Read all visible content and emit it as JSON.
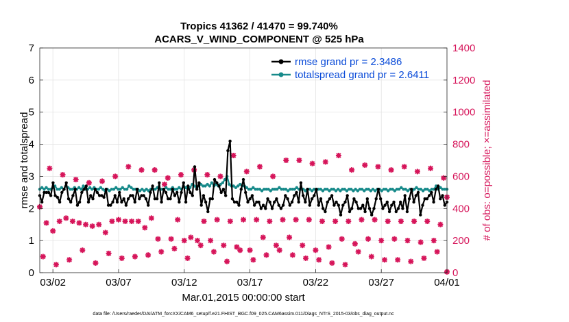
{
  "chart_data": {
    "type": "line",
    "title": "Tropics 41362 / 41470 = 99.740%",
    "subtitle": "ACARS_V_WIND_COMPONENT @ 525 hPa",
    "xlabel": "Mar.01,2015 00:00:00 start",
    "ylabel": "rmse and totalspread",
    "y2label": "# of obs: o=possible; ×=assimilated",
    "ylim": [
      0,
      7
    ],
    "y2lim": [
      0,
      1400
    ],
    "xlim": [
      0,
      31
    ],
    "yticks": [
      0,
      1,
      2,
      3,
      4,
      5,
      6,
      7
    ],
    "y2ticks": [
      0,
      200,
      400,
      600,
      800,
      1000,
      1200,
      1400
    ],
    "xticks": [
      {
        "pos": 1,
        "label": "03/02"
      },
      {
        "pos": 6,
        "label": "03/07"
      },
      {
        "pos": 11,
        "label": "03/12"
      },
      {
        "pos": 16,
        "label": "03/17"
      },
      {
        "pos": 21,
        "label": "03/22"
      },
      {
        "pos": 26,
        "label": "03/27"
      },
      {
        "pos": 31,
        "label": "04/01"
      }
    ],
    "grid": true,
    "legend_position": "top-right",
    "colors": {
      "rmse": "#000000",
      "spread": "#178a8a",
      "obs": "#d6155a",
      "legend_text": "#0a4bd8",
      "right_axis": "#d6155a"
    },
    "series": [
      {
        "name": "rmse grand pr = 2.3486",
        "values": [
          2.4,
          2.2,
          2.5,
          2.5,
          2.5,
          2.4,
          2.8,
          2.4,
          2.35,
          2.2,
          2.5,
          2.6,
          2.8,
          2.3,
          2.2,
          2.4,
          2.6,
          2.1,
          2.2,
          2.5,
          2.6,
          2.7,
          2.2,
          2.4,
          2.3,
          2.6,
          2.5,
          2.4,
          2.4,
          2.35,
          2.6,
          2.1,
          2.1,
          2.2,
          2.4,
          2.2,
          2.5,
          2.2,
          2.3,
          2.1,
          2.3,
          2.4,
          2.4,
          2.2,
          2.6,
          2.3,
          2.4,
          2.4,
          2.3,
          2.1,
          2.5,
          2.7,
          2.3,
          2.3,
          2.8,
          2.2,
          2.6,
          2.5,
          2.3,
          2.3,
          2.6,
          2.4,
          2.5,
          2.2,
          2.5,
          2.8,
          2.2,
          2.7,
          2.5,
          2.4,
          3.3,
          2.6,
          2.8,
          2.1,
          2.4,
          2.2,
          1.9,
          2.3,
          2.3,
          2.9,
          2.8,
          2.7,
          2.5,
          2.6,
          2.4,
          3.8,
          4.1,
          2.3,
          2.2,
          2.2,
          2.1,
          2.6,
          2.9,
          2.5,
          2.2,
          2.3,
          2.4,
          2.1,
          2.2,
          2.2,
          2.0,
          2.1,
          2.0,
          2.3,
          2.2,
          2.0,
          2.2,
          2.3,
          2.1,
          2.0,
          2.1,
          2.4,
          2.3,
          2.1,
          2.2,
          2.4,
          2.5,
          2.2,
          2.8,
          2.4,
          2.2,
          2.6,
          2.1,
          2.3,
          2.4,
          2.6,
          2.1,
          2.3,
          2.0,
          1.9,
          2.2,
          2.3,
          2.4,
          2.1,
          2.2,
          2.1,
          1.8,
          2.1,
          2.2,
          2.4,
          1.9,
          2.0,
          2.3,
          2.2,
          2.0,
          2.0,
          2.1,
          1.9,
          2.3,
          2.0,
          1.8,
          2.0,
          2.3,
          2.6,
          2.3,
          2.0,
          2.1,
          2.2,
          1.9,
          2.1,
          2.2,
          1.9,
          2.0,
          2.2,
          2.0,
          2.4,
          1.9,
          2.3,
          2.6,
          2.2,
          2.4,
          2.5,
          1.8,
          2.1,
          2.3,
          2.3,
          2.4,
          2.5,
          2.2,
          2.6,
          2.7,
          2.3,
          2.4,
          2.1,
          2.2
        ]
      },
      {
        "name": "totalspread grand pr = 2.6411",
        "values": [
          2.6,
          2.65,
          2.6,
          2.65,
          2.6,
          2.6,
          2.65,
          2.7,
          2.6,
          2.6,
          2.65,
          2.6,
          2.7,
          2.65,
          2.6,
          2.6,
          2.65,
          2.6,
          2.65,
          2.6,
          2.7,
          2.6,
          2.6,
          2.65,
          2.6,
          2.65,
          2.6,
          2.6,
          2.65,
          2.6,
          2.55,
          2.6,
          2.55,
          2.6,
          2.6,
          2.65,
          2.6,
          2.6,
          2.65,
          2.6,
          2.6,
          2.7,
          2.65,
          2.6,
          2.6,
          2.6,
          2.55,
          2.6,
          2.55,
          2.6,
          2.55,
          2.6,
          2.6,
          2.6,
          2.65,
          2.6,
          2.6,
          2.6,
          2.65,
          2.6,
          2.6,
          2.65,
          2.6,
          2.6,
          2.65,
          2.6,
          2.7,
          2.65,
          2.6,
          2.65,
          2.75,
          2.7,
          2.65,
          2.7,
          2.75,
          2.7,
          2.7,
          2.75,
          2.7,
          2.8,
          2.7,
          2.75,
          2.7,
          2.75,
          2.8,
          2.9,
          3.0,
          2.75,
          2.7,
          2.7,
          2.65,
          2.7,
          2.75,
          2.7,
          2.7,
          2.65,
          2.6,
          2.6,
          2.65,
          2.6,
          2.6,
          2.6,
          2.55,
          2.6,
          2.6,
          2.6,
          2.55,
          2.6,
          2.6,
          2.6,
          2.65,
          2.6,
          2.6,
          2.6,
          2.55,
          2.6,
          2.6,
          2.6,
          2.65,
          2.6,
          2.6,
          2.6,
          2.55,
          2.6,
          2.6,
          2.55,
          2.6,
          2.55,
          2.6,
          2.6,
          2.55,
          2.6,
          2.6,
          2.55,
          2.6,
          2.6,
          2.55,
          2.6,
          2.55,
          2.6,
          2.6,
          2.55,
          2.6,
          2.6,
          2.55,
          2.6,
          2.55,
          2.6,
          2.6,
          2.55,
          2.6,
          2.6,
          2.55,
          2.6,
          2.55,
          2.6,
          2.6,
          2.55,
          2.6,
          2.6,
          2.55,
          2.6,
          2.6,
          2.55,
          2.6,
          2.6,
          2.65,
          2.6,
          2.6,
          2.55,
          2.6,
          2.55,
          2.6,
          2.65,
          2.6,
          2.6,
          2.55,
          2.6,
          2.6,
          2.55,
          2.6,
          2.6,
          2.7,
          2.6,
          2.65,
          2.6,
          2.6,
          2.6
        ]
      }
    ],
    "obs_counts": [
      {
        "t": 0.0,
        "n": 410
      },
      {
        "t": 0.25,
        "n": 100
      },
      {
        "t": 0.5,
        "n": 310
      },
      {
        "t": 0.75,
        "n": 650
      },
      {
        "t": 1.0,
        "n": 260
      },
      {
        "t": 1.25,
        "n": 50
      },
      {
        "t": 1.5,
        "n": 320
      },
      {
        "t": 1.75,
        "n": 610
      },
      {
        "t": 2.0,
        "n": 340
      },
      {
        "t": 2.25,
        "n": 80
      },
      {
        "t": 2.5,
        "n": 320
      },
      {
        "t": 2.75,
        "n": 580
      },
      {
        "t": 3.0,
        "n": 310
      },
      {
        "t": 3.25,
        "n": 140
      },
      {
        "t": 3.5,
        "n": 300
      },
      {
        "t": 3.75,
        "n": 560
      },
      {
        "t": 4.0,
        "n": 290
      },
      {
        "t": 4.25,
        "n": 60
      },
      {
        "t": 4.5,
        "n": 300
      },
      {
        "t": 4.75,
        "n": 570
      },
      {
        "t": 5.0,
        "n": 250
      },
      {
        "t": 5.25,
        "n": 120
      },
      {
        "t": 5.5,
        "n": 320
      },
      {
        "t": 5.75,
        "n": 600
      },
      {
        "t": 6.0,
        "n": 330
      },
      {
        "t": 6.25,
        "n": 90
      },
      {
        "t": 6.5,
        "n": 320
      },
      {
        "t": 6.75,
        "n": 660
      },
      {
        "t": 7.0,
        "n": 320
      },
      {
        "t": 7.25,
        "n": 100
      },
      {
        "t": 7.5,
        "n": 320
      },
      {
        "t": 7.75,
        "n": 640
      },
      {
        "t": 8.0,
        "n": 280
      },
      {
        "t": 8.25,
        "n": 110
      },
      {
        "t": 8.5,
        "n": 340
      },
      {
        "t": 8.75,
        "n": 640
      },
      {
        "t": 9.0,
        "n": 210
      },
      {
        "t": 9.25,
        "n": 130
      },
      {
        "t": 9.5,
        "n": 550
      },
      {
        "t": 9.75,
        "n": 590
      },
      {
        "t": 10.0,
        "n": 210
      },
      {
        "t": 10.25,
        "n": 150
      },
      {
        "t": 10.5,
        "n": 330
      },
      {
        "t": 10.75,
        "n": 610
      },
      {
        "t": 11.0,
        "n": 200
      },
      {
        "t": 11.25,
        "n": 90
      },
      {
        "t": 11.5,
        "n": 220
      },
      {
        "t": 11.75,
        "n": 640
      },
      {
        "t": 12.0,
        "n": 200
      },
      {
        "t": 12.25,
        "n": 170
      },
      {
        "t": 12.5,
        "n": 320
      },
      {
        "t": 12.75,
        "n": 610
      },
      {
        "t": 13.0,
        "n": 200
      },
      {
        "t": 13.25,
        "n": 130
      },
      {
        "t": 13.5,
        "n": 330
      },
      {
        "t": 13.75,
        "n": 600
      },
      {
        "t": 14.0,
        "n": 170
      },
      {
        "t": 14.25,
        "n": 70
      },
      {
        "t": 14.5,
        "n": 320
      },
      {
        "t": 14.75,
        "n": 730
      },
      {
        "t": 15.0,
        "n": 160
      },
      {
        "t": 15.25,
        "n": 140
      },
      {
        "t": 15.5,
        "n": 330
      },
      {
        "t": 15.75,
        "n": 630
      },
      {
        "t": 16.0,
        "n": 140
      },
      {
        "t": 16.25,
        "n": 80
      },
      {
        "t": 16.5,
        "n": 330
      },
      {
        "t": 16.75,
        "n": 660
      },
      {
        "t": 17.0,
        "n": 220
      },
      {
        "t": 17.25,
        "n": 110
      },
      {
        "t": 17.5,
        "n": 320
      },
      {
        "t": 17.75,
        "n": 600
      },
      {
        "t": 18.0,
        "n": 170
      },
      {
        "t": 18.25,
        "n": 140
      },
      {
        "t": 18.5,
        "n": 330
      },
      {
        "t": 18.75,
        "n": 700
      },
      {
        "t": 19.0,
        "n": 220
      },
      {
        "t": 19.25,
        "n": 110
      },
      {
        "t": 19.5,
        "n": 330
      },
      {
        "t": 19.75,
        "n": 700
      },
      {
        "t": 20.0,
        "n": 170
      },
      {
        "t": 20.25,
        "n": 90
      },
      {
        "t": 20.5,
        "n": 330
      },
      {
        "t": 20.75,
        "n": 680
      },
      {
        "t": 21.0,
        "n": 140
      },
      {
        "t": 21.25,
        "n": 80
      },
      {
        "t": 21.5,
        "n": 320
      },
      {
        "t": 21.75,
        "n": 690
      },
      {
        "t": 22.0,
        "n": 160
      },
      {
        "t": 22.25,
        "n": 60
      },
      {
        "t": 22.5,
        "n": 320
      },
      {
        "t": 22.75,
        "n": 730
      },
      {
        "t": 23.0,
        "n": 210
      },
      {
        "t": 23.25,
        "n": 50
      },
      {
        "t": 23.5,
        "n": 320
      },
      {
        "t": 23.75,
        "n": 640
      },
      {
        "t": 24.0,
        "n": 180
      },
      {
        "t": 24.25,
        "n": 130
      },
      {
        "t": 24.5,
        "n": 330
      },
      {
        "t": 24.75,
        "n": 670
      },
      {
        "t": 25.0,
        "n": 210
      },
      {
        "t": 25.25,
        "n": 100
      },
      {
        "t": 25.5,
        "n": 330
      },
      {
        "t": 25.75,
        "n": 660
      },
      {
        "t": 26.0,
        "n": 200
      },
      {
        "t": 26.25,
        "n": 80
      },
      {
        "t": 26.5,
        "n": 320
      },
      {
        "t": 26.75,
        "n": 640
      },
      {
        "t": 27.0,
        "n": 210
      },
      {
        "t": 27.25,
        "n": 80
      },
      {
        "t": 27.5,
        "n": 320
      },
      {
        "t": 27.75,
        "n": 660
      },
      {
        "t": 28.0,
        "n": 200
      },
      {
        "t": 28.25,
        "n": 70
      },
      {
        "t": 28.5,
        "n": 320
      },
      {
        "t": 28.75,
        "n": 630
      },
      {
        "t": 29.0,
        "n": 190
      },
      {
        "t": 29.25,
        "n": 90
      },
      {
        "t": 29.5,
        "n": 320
      },
      {
        "t": 29.75,
        "n": 650
      },
      {
        "t": 30.0,
        "n": 200
      },
      {
        "t": 30.25,
        "n": 130
      },
      {
        "t": 30.5,
        "n": 300
      },
      {
        "t": 30.75,
        "n": 590
      },
      {
        "t": 31.0,
        "n": 470
      },
      {
        "t": 31.0,
        "n": 5
      }
    ],
    "footer": "data file: /Users/raeder/DAI/ATM_forcXX/CAM6_setup/f.e21.FHIST_BGC.f09_025.CAM6assim.011/Diags_NTrS_2015-03/obs_diag_output.nc"
  }
}
